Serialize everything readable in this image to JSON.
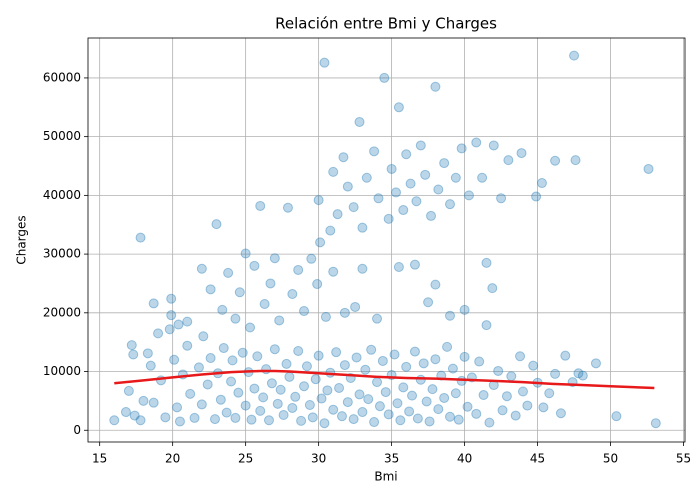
{
  "chart_data": {
    "type": "scatter",
    "title": "Relación entre Bmi y Charges",
    "x_label": "Bmi",
    "y_label": "Charges",
    "xlim": [
      14.2,
      55.1
    ],
    "ylim": [
      -2000,
      66800
    ],
    "xticks": [
      15,
      20,
      25,
      30,
      35,
      40,
      45,
      50,
      55
    ],
    "yticks": [
      0,
      10000,
      20000,
      30000,
      40000,
      50000,
      60000
    ],
    "grid": true,
    "series": [
      {
        "type": "scatter",
        "color": "#1f77b4",
        "x": [
          16.0,
          16.8,
          17.0,
          17.2,
          17.3,
          17.4,
          17.8,
          18.0,
          18.3,
          18.5,
          18.7,
          19.0,
          19.2,
          19.5,
          19.8,
          19.9,
          20.1,
          20.3,
          20.5,
          20.7,
          21.0,
          21.2,
          21.5,
          21.8,
          22.0,
          22.1,
          22.4,
          22.6,
          22.9,
          23.1,
          23.3,
          23.5,
          23.7,
          24.0,
          24.1,
          24.3,
          24.5,
          24.8,
          25.0,
          25.2,
          25.4,
          25.6,
          25.8,
          26.0,
          26.2,
          26.4,
          26.6,
          26.8,
          27.0,
          27.2,
          27.4,
          27.6,
          27.8,
          28.0,
          28.2,
          28.4,
          28.6,
          28.8,
          29.0,
          29.2,
          29.4,
          29.6,
          29.8,
          30.0,
          30.2,
          30.4,
          30.6,
          30.8,
          31.0,
          31.2,
          31.4,
          31.6,
          31.8,
          32.0,
          32.2,
          32.4,
          32.6,
          32.8,
          33.0,
          33.2,
          33.4,
          33.6,
          33.8,
          34.0,
          34.2,
          34.4,
          34.6,
          34.8,
          35.0,
          35.2,
          35.4,
          35.6,
          35.8,
          36.0,
          36.2,
          36.4,
          36.6,
          36.8,
          37.0,
          37.2,
          37.4,
          37.6,
          37.8,
          38.0,
          38.2,
          38.4,
          38.6,
          38.8,
          39.0,
          39.2,
          39.4,
          39.6,
          39.8,
          40.0,
          40.2,
          40.5,
          40.8,
          41.0,
          41.3,
          41.5,
          41.7,
          42.0,
          42.3,
          42.6,
          42.9,
          43.2,
          43.5,
          43.8,
          44.0,
          44.3,
          44.7,
          45.0,
          45.4,
          45.8,
          46.2,
          46.6,
          46.9,
          47.4,
          47.8,
          48.1,
          49.0,
          50.4,
          53.1,
          17.8,
          18.7,
          19.9,
          20.4,
          21.0,
          22.0,
          22.6,
          23.0,
          23.4,
          23.8,
          24.3,
          24.6,
          25.0,
          25.3,
          25.6,
          26.0,
          26.3,
          26.7,
          27.0,
          27.3,
          27.9,
          28.2,
          28.6,
          29.0,
          29.5,
          29.9,
          30.1,
          30.5,
          31.0,
          31.8,
          32.5,
          33.0,
          34.0,
          35.5,
          36.6,
          37.5,
          38.0,
          39.0,
          40.0,
          41.5,
          41.9,
          30.0,
          30.4,
          30.8,
          31.0,
          31.3,
          31.7,
          32.0,
          32.4,
          32.8,
          33.0,
          33.3,
          33.8,
          34.1,
          34.5,
          34.8,
          35.0,
          35.3,
          35.5,
          35.8,
          36.0,
          36.3,
          36.7,
          37.0,
          37.3,
          37.7,
          38.0,
          38.2,
          38.6,
          39.0,
          39.4,
          39.8,
          40.3,
          40.8,
          41.2,
          42.0,
          42.5,
          43.0,
          43.9,
          44.9,
          45.3,
          46.2,
          47.5,
          47.6,
          52.6
        ],
        "values": [
          1700,
          3100,
          6700,
          14500,
          12900,
          2500,
          1700,
          5000,
          13100,
          11000,
          4700,
          16500,
          8500,
          2200,
          17200,
          22400,
          12000,
          3900,
          1500,
          9500,
          14400,
          6200,
          2100,
          10700,
          4400,
          16000,
          7800,
          12300,
          1900,
          9700,
          5200,
          14000,
          3000,
          8300,
          11900,
          2100,
          6400,
          13200,
          4200,
          9900,
          1800,
          7100,
          12600,
          3300,
          5600,
          10400,
          1700,
          8000,
          13800,
          4500,
          6900,
          2600,
          11300,
          9100,
          3800,
          5700,
          13500,
          1600,
          7500,
          10900,
          4300,
          2200,
          8700,
          12700,
          5400,
          1200,
          6800,
          9800,
          3500,
          13300,
          7200,
          2400,
          11100,
          4800,
          8900,
          1900,
          12400,
          6100,
          3100,
          10300,
          5300,
          13700,
          1400,
          8200,
          4100,
          11800,
          6500,
          2700,
          9400,
          12900,
          4600,
          1700,
          7300,
          10800,
          3200,
          5900,
          13400,
          2000,
          8600,
          11400,
          4900,
          1500,
          7000,
          12100,
          3600,
          9300,
          5500,
          14200,
          2300,
          10500,
          6300,
          1800,
          8400,
          12500,
          4000,
          9000,
          2800,
          11700,
          6000,
          17900,
          1300,
          7700,
          10100,
          3400,
          5800,
          9200,
          2500,
          12600,
          6600,
          4200,
          11000,
          8100,
          3900,
          6300,
          9600,
          2900,
          12700,
          8200,
          9700,
          9300,
          11400,
          2400,
          1200,
          32800,
          21600,
          19600,
          18000,
          18500,
          27500,
          24000,
          35100,
          20500,
          26800,
          19000,
          23500,
          30100,
          17500,
          28000,
          38200,
          21500,
          25000,
          29300,
          18700,
          37900,
          23200,
          27300,
          20300,
          29200,
          24900,
          32000,
          19300,
          27000,
          20000,
          21000,
          27500,
          19000,
          27800,
          28200,
          21800,
          24800,
          19500,
          20500,
          28500,
          24200,
          39200,
          62600,
          34000,
          44000,
          36800,
          46500,
          41500,
          38000,
          52500,
          34500,
          43000,
          47500,
          39500,
          60000,
          36000,
          44500,
          40500,
          55000,
          37500,
          47000,
          42000,
          39000,
          48500,
          43500,
          36500,
          58500,
          41000,
          45500,
          38500,
          43000,
          48000,
          40000,
          49000,
          43000,
          48500,
          39500,
          46000,
          47200,
          39800,
          42100,
          45900,
          63800,
          46000,
          44500
        ]
      },
      {
        "type": "line",
        "color": "#e8191a",
        "x": [
          16,
          18,
          20,
          22,
          24,
          26,
          27,
          28,
          30,
          32,
          34,
          36,
          38,
          40,
          42,
          44,
          46,
          48,
          50,
          53
        ],
        "values": [
          8000,
          8500,
          9000,
          9500,
          9900,
          10100,
          10100,
          10000,
          9700,
          9400,
          9100,
          8900,
          8800,
          8600,
          8400,
          8200,
          7900,
          7700,
          7500,
          7200
        ]
      }
    ]
  }
}
